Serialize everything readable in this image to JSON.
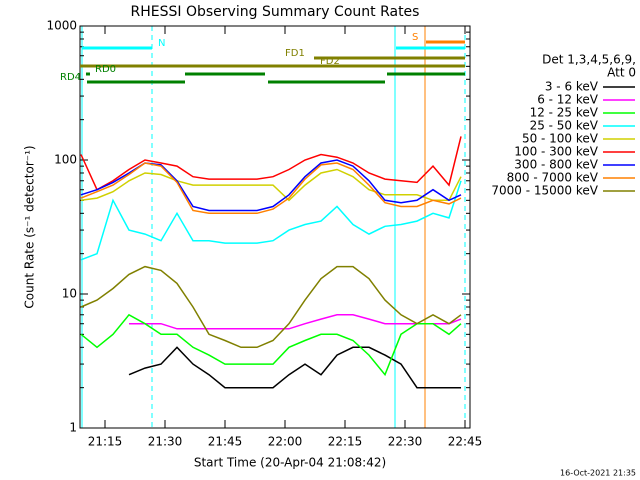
{
  "chart_data": {
    "type": "line",
    "title": "RHESSI Observing Summary Count Rates",
    "x_label": "Start Time (20-Apr-04 21:08:42)",
    "y_label": "Count Rate (s⁻¹ detector⁻¹)",
    "legend_title": [
      "Det 1,3,4,5,6,9,",
      "Att 0"
    ],
    "timestamp": "16-Oct-2021 21:35",
    "log_y": true,
    "xlim": [
      8.75,
      106.25
    ],
    "xticks": [
      {
        "value": 15,
        "label": "21:15"
      },
      {
        "value": 30,
        "label": "21:30"
      },
      {
        "value": 45,
        "label": "21:45"
      },
      {
        "value": 60,
        "label": "22:00"
      },
      {
        "value": 75,
        "label": "22:15"
      },
      {
        "value": 90,
        "label": "22:30"
      },
      {
        "value": 105,
        "label": "22:45"
      }
    ],
    "ylim": [
      1,
      1000
    ],
    "yticks": [
      1,
      10,
      100,
      1000
    ],
    "x": [
      9,
      13,
      17,
      21,
      25,
      29,
      33,
      37,
      41,
      45,
      49,
      53,
      57,
      61,
      65,
      69,
      73,
      77,
      81,
      85,
      89,
      93,
      97,
      101,
      104
    ],
    "series": [
      {
        "name": "3 - 6 keV",
        "color": "#000000",
        "values": [
          null,
          null,
          null,
          2.5,
          2.8,
          3,
          4,
          3,
          2.5,
          2,
          2,
          2,
          2,
          2.5,
          3,
          2.5,
          3.5,
          4,
          4,
          3.5,
          3,
          2,
          2,
          2,
          2
        ]
      },
      {
        "name": "6 - 12 keV",
        "color": "#ff00ff",
        "values": [
          null,
          null,
          null,
          6,
          6,
          6,
          5.5,
          5.5,
          5.5,
          5.5,
          5.5,
          5.5,
          5.5,
          5.5,
          6,
          6.5,
          7,
          7,
          6.5,
          6,
          6,
          6,
          6,
          6,
          6.5
        ]
      },
      {
        "name": "12 - 25 keV",
        "color": "#00ff00",
        "values": [
          5,
          4,
          5,
          7,
          6,
          5,
          5,
          4,
          3.5,
          3,
          3,
          3,
          3,
          4,
          4.5,
          5,
          5,
          4.5,
          3.5,
          2.5,
          5,
          6,
          6,
          5,
          6
        ]
      },
      {
        "name": "25 - 50 keV",
        "color": "#00ffff",
        "values": [
          18,
          20,
          50,
          30,
          28,
          25,
          40,
          25,
          25,
          24,
          24,
          24,
          25,
          30,
          33,
          35,
          45,
          33,
          28,
          32,
          33,
          35,
          40,
          37,
          70
        ]
      },
      {
        "name": "50 - 100 keV",
        "color": "#d0d000",
        "values": [
          50,
          52,
          58,
          70,
          80,
          78,
          70,
          65,
          65,
          65,
          65,
          65,
          65,
          50,
          65,
          80,
          85,
          75,
          60,
          55,
          55,
          55,
          50,
          50,
          75
        ]
      },
      {
        "name": "100 - 300 keV",
        "color": "#ff0000",
        "values": [
          110,
          60,
          70,
          85,
          100,
          95,
          90,
          75,
          72,
          72,
          72,
          72,
          75,
          85,
          100,
          110,
          105,
          95,
          80,
          72,
          70,
          68,
          90,
          65,
          150
        ]
      },
      {
        "name": "300 - 800 keV",
        "color": "#0000ff",
        "values": [
          55,
          60,
          68,
          80,
          95,
          92,
          70,
          45,
          42,
          42,
          42,
          42,
          45,
          55,
          75,
          95,
          100,
          90,
          70,
          50,
          48,
          50,
          60,
          50,
          55
        ]
      },
      {
        "name": "800 - 7000 keV",
        "color": "#ff8000",
        "values": [
          52,
          58,
          65,
          78,
          95,
          90,
          68,
          42,
          40,
          40,
          40,
          40,
          43,
          52,
          72,
          92,
          95,
          85,
          65,
          48,
          45,
          45,
          50,
          47,
          52
        ]
      },
      {
        "name": "7000 - 15000 keV",
        "color": "#808000",
        "values": [
          8,
          9,
          11,
          14,
          16,
          15,
          12,
          8,
          5,
          4.5,
          4,
          4,
          4.5,
          6,
          9,
          13,
          16,
          16,
          13,
          9,
          7,
          6,
          7,
          6,
          7
        ]
      }
    ],
    "flags": [
      {
        "label": "N",
        "color": "#00ffff",
        "segments": [
          [
            9.25,
            26.75
          ],
          [
            87.75,
            105
          ]
        ]
      },
      {
        "label": "S",
        "color": "#ff8000",
        "segments": [
          [
            95.25,
            105
          ]
        ]
      },
      {
        "label": "FD1",
        "color": "#808000",
        "segments": [
          [
            67.25,
            105
          ]
        ]
      },
      {
        "label": "FD2",
        "color": "#808000",
        "segments": [
          [
            8.75,
            105
          ]
        ]
      },
      {
        "label": "RD0",
        "color": "#008000",
        "segments": [
          [
            10.25,
            11.25
          ],
          [
            35,
            55
          ],
          [
            85.5,
            105
          ]
        ]
      },
      {
        "label": "RD4",
        "color": "#008000",
        "segments": [
          [
            10.5,
            35
          ],
          [
            55.75,
            85
          ]
        ]
      }
    ]
  }
}
